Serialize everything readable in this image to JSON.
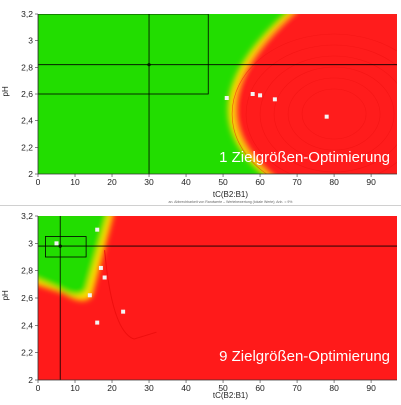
{
  "chart_data": [
    {
      "type": "heatmap",
      "title": "1 Zielgrößen-Optimierung",
      "xlabel": "tC(B2:B1)",
      "ylabel": "pH",
      "xlim": [
        0,
        97
      ],
      "ylim": [
        2.0,
        3.2
      ],
      "x_ticks": [
        "0",
        "10",
        "20",
        "30",
        "40",
        "50",
        "60",
        "70",
        "80",
        "90"
      ],
      "y_ticks": [
        "2",
        "2,2",
        "2,4",
        "2,6",
        "2,8",
        "3",
        "3,2"
      ],
      "footnote": "an. Abbrechbarkeit von Randwerte – Wertebewertung (lokale Werte); Anh. = 9%",
      "colors": {
        "good": "#22dd00",
        "bad": "#ff1a1a",
        "transition": "#ffdd00"
      },
      "points": [
        [
          51,
          2.57
        ],
        [
          58,
          2.6
        ],
        [
          60,
          2.59
        ],
        [
          64,
          2.56
        ],
        [
          78,
          2.43
        ]
      ],
      "crosshair": {
        "x": 30,
        "y": 2.82
      },
      "selection": {
        "x": [
          0,
          46
        ],
        "y": [
          2.6,
          3.2
        ]
      }
    },
    {
      "type": "heatmap",
      "title": "9 Zielgrößen-Optimierung",
      "xlabel": "tC(B2:B1)",
      "ylabel": "pH",
      "xlim": [
        0,
        97
      ],
      "ylim": [
        2.0,
        3.2
      ],
      "x_ticks": [
        "0",
        "10",
        "20",
        "30",
        "40",
        "50",
        "60",
        "70",
        "80",
        "90"
      ],
      "y_ticks": [
        "2",
        "2,2",
        "2,4",
        "2,6",
        "2,8",
        "3",
        "3,2"
      ],
      "colors": {
        "good": "#22dd00",
        "bad": "#ff1a1a",
        "transition": "#ffdd00"
      },
      "points": [
        [
          16,
          3.1
        ],
        [
          17,
          2.82
        ],
        [
          18,
          2.75
        ],
        [
          14,
          2.62
        ],
        [
          23,
          2.5
        ],
        [
          16,
          2.42
        ],
        [
          5,
          3.0
        ]
      ],
      "crosshair": {
        "x": 6,
        "y": 2.98
      },
      "selection": {
        "x": [
          2,
          13
        ],
        "y": [
          2.9,
          3.05
        ]
      }
    }
  ]
}
